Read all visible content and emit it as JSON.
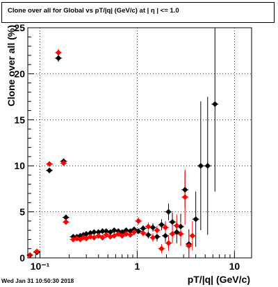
{
  "title": "Clone  over all for Global vs pT/|q| (GeV/c) at |  η | <= 1.0",
  "timestamp": "Wed Jan 31 10:50:30 2018",
  "chart_data": {
    "type": "scatter",
    "title": "Clone  over all for Global vs pT/|q| (GeV/c) at |  η | <= 1.0",
    "xlabel": "pT/|q| (GeV/c)",
    "ylabel": "Clone  over all (%)",
    "x_scale": "log",
    "xlim": [
      0.075,
      15
    ],
    "ylim": [
      0,
      25
    ],
    "grid": true,
    "x_tick_labels": [
      {
        "value": 0.1,
        "label": "10⁻¹"
      },
      {
        "value": 1,
        "label": "1"
      },
      {
        "value": 10,
        "label": "10"
      }
    ],
    "y_ticks": [
      0,
      5,
      10,
      15,
      20,
      25
    ],
    "series": [
      {
        "color": "#000000",
        "points": [
          {
            "x": 0.079,
            "y": 0.3,
            "err": 0.15
          },
          {
            "x": 0.093,
            "y": 0.6,
            "err": 0.2
          },
          {
            "x": 0.125,
            "y": 9.5,
            "err": 0.3
          },
          {
            "x": 0.155,
            "y": 21.7,
            "err": 0.4
          },
          {
            "x": 0.175,
            "y": 10.5,
            "err": 0.3
          },
          {
            "x": 0.185,
            "y": 4.4,
            "err": 0.3
          },
          {
            "x": 0.22,
            "y": 2.3,
            "err": 0.15
          },
          {
            "x": 0.24,
            "y": 2.3,
            "err": 0.15
          },
          {
            "x": 0.26,
            "y": 2.4,
            "err": 0.15
          },
          {
            "x": 0.28,
            "y": 2.5,
            "err": 0.15
          },
          {
            "x": 0.3,
            "y": 2.6,
            "err": 0.15
          },
          {
            "x": 0.33,
            "y": 2.7,
            "err": 0.15
          },
          {
            "x": 0.36,
            "y": 2.8,
            "err": 0.2
          },
          {
            "x": 0.4,
            "y": 2.8,
            "err": 0.2
          },
          {
            "x": 0.44,
            "y": 2.9,
            "err": 0.2
          },
          {
            "x": 0.48,
            "y": 2.9,
            "err": 0.2
          },
          {
            "x": 0.53,
            "y": 2.8,
            "err": 0.2
          },
          {
            "x": 0.58,
            "y": 3.0,
            "err": 0.2
          },
          {
            "x": 0.64,
            "y": 2.9,
            "err": 0.2
          },
          {
            "x": 0.7,
            "y": 2.8,
            "err": 0.25
          },
          {
            "x": 0.77,
            "y": 3.0,
            "err": 0.25
          },
          {
            "x": 0.85,
            "y": 2.9,
            "err": 0.25
          },
          {
            "x": 0.93,
            "y": 3.1,
            "err": 0.3
          },
          {
            "x": 1.03,
            "y": 2.9,
            "err": 0.3
          },
          {
            "x": 1.15,
            "y": 3.2,
            "err": 0.35
          },
          {
            "x": 1.3,
            "y": 2.5,
            "err": 0.4
          },
          {
            "x": 1.45,
            "y": 3.3,
            "err": 0.45
          },
          {
            "x": 1.6,
            "y": 2.3,
            "err": 0.5
          },
          {
            "x": 1.78,
            "y": 3.6,
            "err": 0.6
          },
          {
            "x": 1.95,
            "y": 2.4,
            "err": 0.7
          },
          {
            "x": 2.1,
            "y": 5.0,
            "err": 0.9
          },
          {
            "x": 2.3,
            "y": 3.9,
            "err": 1.0
          },
          {
            "x": 2.55,
            "y": 2.8,
            "err": 1.2
          },
          {
            "x": 2.8,
            "y": 3.4,
            "err": 1.4
          },
          {
            "x": 3.1,
            "y": 7.4,
            "err": 2.0
          },
          {
            "x": 3.4,
            "y": 1.5,
            "err": 1.6
          },
          {
            "x": 4.0,
            "y": 4.2,
            "err": 3.0
          },
          {
            "x": 4.5,
            "y": 10.0,
            "err": 7.0
          },
          {
            "x": 5.3,
            "y": 10.0,
            "err": 7.5
          },
          {
            "x": 6.3,
            "y": 16.7,
            "err": 9.5
          }
        ]
      },
      {
        "color": "#ff0000",
        "points": [
          {
            "x": 0.079,
            "y": 0.3,
            "err": 0.15
          },
          {
            "x": 0.093,
            "y": 0.7,
            "err": 0.2
          },
          {
            "x": 0.125,
            "y": 10.2,
            "err": 0.3
          },
          {
            "x": 0.155,
            "y": 22.3,
            "err": 0.4
          },
          {
            "x": 0.175,
            "y": 10.3,
            "err": 0.3
          },
          {
            "x": 0.185,
            "y": 3.9,
            "err": 0.3
          },
          {
            "x": 0.22,
            "y": 2.0,
            "err": 0.15
          },
          {
            "x": 0.24,
            "y": 2.1,
            "err": 0.15
          },
          {
            "x": 0.26,
            "y": 2.0,
            "err": 0.15
          },
          {
            "x": 0.28,
            "y": 2.2,
            "err": 0.15
          },
          {
            "x": 0.3,
            "y": 2.1,
            "err": 0.15
          },
          {
            "x": 0.33,
            "y": 2.3,
            "err": 0.15
          },
          {
            "x": 0.36,
            "y": 2.2,
            "err": 0.2
          },
          {
            "x": 0.4,
            "y": 2.4,
            "err": 0.2
          },
          {
            "x": 0.44,
            "y": 2.2,
            "err": 0.2
          },
          {
            "x": 0.48,
            "y": 2.5,
            "err": 0.2
          },
          {
            "x": 0.53,
            "y": 2.3,
            "err": 0.2
          },
          {
            "x": 0.58,
            "y": 2.4,
            "err": 0.2
          },
          {
            "x": 0.64,
            "y": 2.6,
            "err": 0.2
          },
          {
            "x": 0.7,
            "y": 2.4,
            "err": 0.25
          },
          {
            "x": 0.77,
            "y": 2.6,
            "err": 0.25
          },
          {
            "x": 0.85,
            "y": 2.5,
            "err": 0.25
          },
          {
            "x": 0.93,
            "y": 2.8,
            "err": 0.3
          },
          {
            "x": 1.03,
            "y": 4.0,
            "err": 0.4
          },
          {
            "x": 1.15,
            "y": 2.7,
            "err": 0.35
          },
          {
            "x": 1.3,
            "y": 3.4,
            "err": 0.45
          },
          {
            "x": 1.45,
            "y": 2.2,
            "err": 0.45
          },
          {
            "x": 1.6,
            "y": 3.0,
            "err": 0.5
          },
          {
            "x": 1.78,
            "y": 1.0,
            "err": 0.5
          },
          {
            "x": 1.95,
            "y": 3.3,
            "err": 0.7
          },
          {
            "x": 2.1,
            "y": 1.6,
            "err": 0.8
          },
          {
            "x": 2.3,
            "y": 2.6,
            "err": 1.0
          },
          {
            "x": 2.55,
            "y": 3.5,
            "err": 1.2
          },
          {
            "x": 2.8,
            "y": 2.6,
            "err": 1.3
          },
          {
            "x": 3.1,
            "y": 6.6,
            "err": 3.0
          },
          {
            "x": 3.4,
            "y": 1.3,
            "err": 1.5
          },
          {
            "x": 3.7,
            "y": 2.4,
            "err": 1.6
          }
        ]
      }
    ]
  }
}
